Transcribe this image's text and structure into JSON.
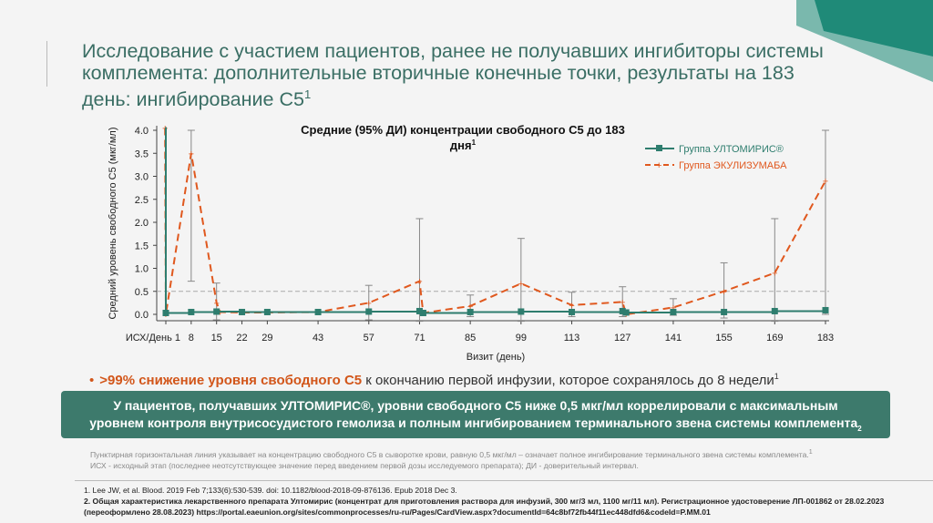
{
  "title": "Исследование с участием пациентов, ранее не получавших ингибиторы системы комплемента: дополнительные вторичные конечные точки, результаты на 183 день: ингибирование С5",
  "title_sup": "1",
  "colors": {
    "teal": "#2e7d6e",
    "orange": "#e0581e",
    "brand": "#2a8a7a"
  },
  "chart_data": {
    "type": "line",
    "title": "Средние (95% ДИ) концентрации свободного С5 до 183",
    "title_line2": "дня",
    "title_sup": "1",
    "ylabel": "Средний уровень свободного С5 (мкг/мл)",
    "xlabel": "Визит (день)",
    "ylim": [
      0,
      4.0
    ],
    "yticks": [
      "0.0",
      "0.5",
      "1.0",
      "1.5",
      "2.0",
      "2.5",
      "3.0",
      "3.5",
      "4.0"
    ],
    "xticks": [
      {
        "day": 1,
        "label": "ИСХ/День 1"
      },
      {
        "day": 8,
        "label": "8"
      },
      {
        "day": 15,
        "label": "15"
      },
      {
        "day": 22,
        "label": "22"
      },
      {
        "day": 29,
        "label": "29"
      },
      {
        "day": 43,
        "label": "43"
      },
      {
        "day": 57,
        "label": "57"
      },
      {
        "day": 71,
        "label": "71"
      },
      {
        "day": 85,
        "label": "85"
      },
      {
        "day": 99,
        "label": "99"
      },
      {
        "day": 113,
        "label": "113"
      },
      {
        "day": 127,
        "label": "127"
      },
      {
        "day": 141,
        "label": "141"
      },
      {
        "day": 155,
        "label": "155"
      },
      {
        "day": 169,
        "label": "169"
      },
      {
        "day": 183,
        "label": "183"
      }
    ],
    "reference_line": 0.5,
    "series": [
      {
        "name": "Группа УЛТОМИРИС®",
        "style": "solid-square",
        "x": [
          0.8,
          1,
          8,
          15,
          22,
          29,
          43,
          57,
          71,
          72,
          85,
          99,
          113,
          127,
          128,
          141,
          155,
          169,
          183
        ],
        "y": [
          4.05,
          0.03,
          0.05,
          0.06,
          0.05,
          0.05,
          0.05,
          0.06,
          0.07,
          0.03,
          0.05,
          0.06,
          0.05,
          0.07,
          0.04,
          0.05,
          0.05,
          0.07,
          0.09
        ]
      },
      {
        "name": "Группа ЭКУЛИЗУМАБА",
        "style": "dashed-plus",
        "x": [
          0.8,
          1,
          8,
          15,
          16,
          22,
          29,
          43,
          57,
          71,
          72,
          85,
          99,
          113,
          127,
          128,
          141,
          155,
          169,
          183
        ],
        "y": [
          4.05,
          0.0,
          3.5,
          0.25,
          0.05,
          0.04,
          0.04,
          0.05,
          0.25,
          0.72,
          0.03,
          0.18,
          0.67,
          0.2,
          0.27,
          0.0,
          0.15,
          0.5,
          0.9,
          2.9
        ],
        "ci": [
          {
            "x": 8,
            "lo": 0.72,
            "hi": 4.0
          },
          {
            "x": 15,
            "lo": -0.12,
            "hi": 0.68
          },
          {
            "x": 57,
            "lo": -0.12,
            "hi": 0.63
          },
          {
            "x": 71,
            "lo": -0.15,
            "hi": 2.08
          },
          {
            "x": 85,
            "lo": -0.05,
            "hi": 0.42
          },
          {
            "x": 99,
            "lo": -0.15,
            "hi": 1.65
          },
          {
            "x": 113,
            "lo": -0.05,
            "hi": 0.48
          },
          {
            "x": 127,
            "lo": -0.05,
            "hi": 0.6
          },
          {
            "x": 141,
            "lo": -0.02,
            "hi": 0.34
          },
          {
            "x": 155,
            "lo": -0.08,
            "hi": 1.12
          },
          {
            "x": 169,
            "lo": -0.15,
            "hi": 2.08
          },
          {
            "x": 183,
            "lo": 0.0,
            "hi": 4.0
          }
        ]
      }
    ],
    "legend_position": "top-right"
  },
  "bullet": {
    "highlight": ">99% снижение уровня свободного С5",
    "rest": " к окончанию первой инфузии, которое сохранялось до 8 недели",
    "sup": "1"
  },
  "box": {
    "line1": "У пациентов, получавших УЛТОМИРИС®, уровни свободного С5 ниже 0,5 мкг/мл коррелировали с максимальным",
    "line2": "уровнем контроля внутрисосудистого гемолиза и полным ингибированием терминального звена системы комплемента",
    "sup": "2"
  },
  "notes": {
    "line1": "Пунктирная горизонтальная линия указывает на концентрацию свободного С5 в сыворотке крови, равную 0,5 мкг/мл – означает полное ингибирование терминального звена системы комплемента.",
    "sup": "1",
    "line2": "ИСХ - исходный этап (последнее неотсутствующее значение перед введением первой дозы исследуемого препарата); ДИ - доверительный интервал."
  },
  "refs": {
    "r1": "1.   Lee JW, et al. Blood. 2019 Feb 7;133(6):530-539. doi: 10.1182/blood-2018-09-876136. Epub 2018 Dec 3.",
    "r2": "2. Общая характеристика лекарственного препарата Ултомирис (концентрат для приготовления раствора для инфузий, 300 мг/3 мл, 1100 мг/11 мл). Регистрационное удостоверение ЛП-001862 от 28.02.2023 (переоформлено 28.08.2023) https://portal.eaeunion.org/sites/commonprocesses/ru-ru/Pages/CardView.aspx?documentId=64c8bf72fb44f11ec448dfd6&codeId=P.MM.01"
  }
}
